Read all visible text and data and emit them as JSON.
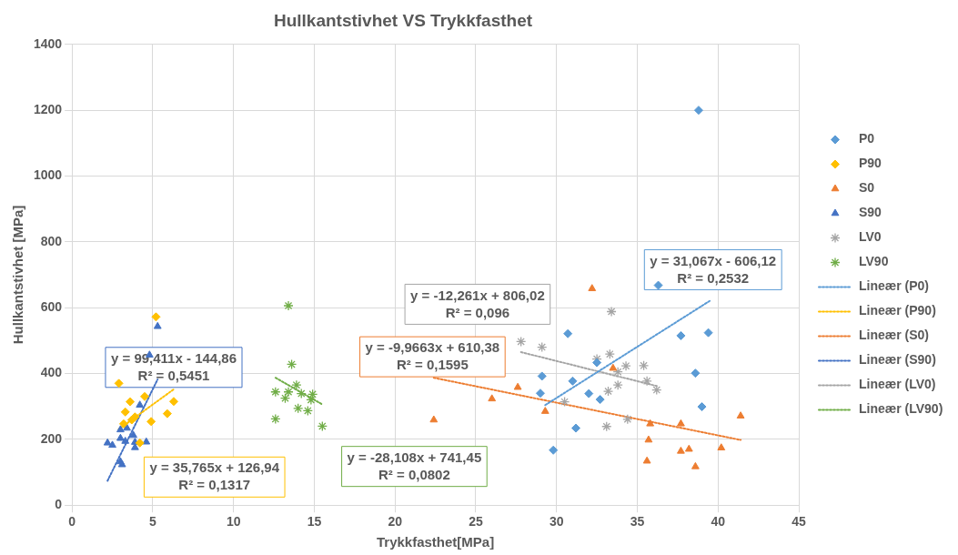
{
  "chart_data": {
    "type": "scatter",
    "title": "Hullkantstivhet VS Trykkfasthet",
    "xlabel": "Trykkfasthet[MPa]",
    "ylabel": "Hullkantstivhet [MPa]",
    "xlim": [
      0,
      45
    ],
    "xticks": [
      0,
      5,
      10,
      15,
      20,
      25,
      30,
      35,
      40,
      45
    ],
    "ylim": [
      0,
      1400
    ],
    "yticks": [
      0,
      200,
      400,
      600,
      800,
      1000,
      1200,
      1400
    ],
    "grid": true,
    "legend": "right",
    "series": [
      {
        "name": "P0",
        "color": "#5b9bd5",
        "marker": "diamond",
        "x": [
          30.7,
          36.3,
          37.7,
          39.4,
          32.5,
          29.1,
          31.0,
          29.0,
          32.0,
          32.7,
          38.6,
          39.0,
          31.2,
          29.8,
          38.8
        ],
        "values": [
          521,
          668,
          515,
          524,
          433,
          392,
          377,
          340,
          339,
          321,
          401,
          299,
          234,
          167,
          1200
        ]
      },
      {
        "name": "P90",
        "color": "#ffc000",
        "marker": "diamond",
        "x": [
          5.2,
          2.9,
          3.6,
          3.3,
          4.5,
          6.3,
          5.9,
          4.9,
          3.7,
          3.2,
          3.9,
          4.2
        ],
        "values": [
          572,
          370,
          314,
          283,
          330,
          315,
          278,
          254,
          259,
          247,
          268,
          189
        ]
      },
      {
        "name": "S0",
        "color": "#ed7d31",
        "marker": "triangle",
        "x": [
          32.2,
          33.5,
          29.3,
          35.8,
          37.7,
          41.4,
          35.7,
          35.6,
          37.7,
          38.2,
          38.6,
          40.2,
          22.4,
          26.0,
          27.6
        ],
        "values": [
          658,
          416,
          285,
          247,
          247,
          271,
          198,
          134,
          164,
          170,
          117,
          174,
          259,
          323,
          358
        ]
      },
      {
        "name": "S90",
        "color": "#4472c4",
        "marker": "triangle",
        "x": [
          5.3,
          4.8,
          4.2,
          3.0,
          3.4,
          3.8,
          3.0,
          3.3,
          2.2,
          2.5,
          3.9,
          4.6,
          3.9,
          3.0,
          3.1
        ],
        "values": [
          543,
          456,
          304,
          229,
          234,
          212,
          203,
          194,
          189,
          182,
          191,
          192,
          175,
          132,
          123
        ]
      },
      {
        "name": "LV0",
        "color": "#a5a5a5",
        "marker": "cross",
        "x": [
          33.4,
          29.1,
          32.5,
          33.3,
          34.3,
          35.4,
          33.8,
          35.6,
          36.2,
          33.8,
          33.2,
          30.5,
          34.4,
          33.1,
          27.8
        ],
        "values": [
          588,
          480,
          444,
          459,
          423,
          424,
          405,
          377,
          350,
          365,
          346,
          314,
          261,
          239,
          497
        ]
      },
      {
        "name": "LV90",
        "color": "#70ad47",
        "marker": "cross",
        "x": [
          13.4,
          13.6,
          13.9,
          12.6,
          13.4,
          14.2,
          14.9,
          13.2,
          14.8,
          14.0,
          14.6,
          12.6,
          15.5
        ],
        "values": [
          606,
          428,
          365,
          344,
          344,
          339,
          337,
          325,
          320,
          294,
          287,
          262,
          240
        ]
      },
      {
        "name": "Lineær (P0)",
        "type": "line",
        "color": "#5b9bd5",
        "marker": "none",
        "line_style": "dotted",
        "x": [
          29.3,
          39.5
        ],
        "values": [
          304,
          621
        ]
      },
      {
        "name": "Lineær (P90)",
        "type": "line",
        "color": "#ffc000",
        "marker": "none",
        "line_style": "dotted",
        "x": [
          2.9,
          6.3
        ],
        "values": [
          231,
          352
        ]
      },
      {
        "name": "Lineær (S0)",
        "type": "line",
        "color": "#ed7d31",
        "marker": "none",
        "line_style": "dotted",
        "x": [
          22.4,
          41.4
        ],
        "values": [
          387,
          198
        ]
      },
      {
        "name": "Lineær (S90)",
        "type": "line",
        "color": "#4472c4",
        "marker": "none",
        "line_style": "dotted",
        "x": [
          2.2,
          5.3
        ],
        "values": [
          74,
          382
        ]
      },
      {
        "name": "Lineær (LV0)",
        "type": "line",
        "color": "#a5a5a5",
        "marker": "none",
        "line_style": "dotted",
        "x": [
          27.8,
          36.2
        ],
        "values": [
          465,
          362
        ]
      },
      {
        "name": "Lineær (LV90)",
        "type": "line",
        "color": "#70ad47",
        "marker": "none",
        "line_style": "dotted",
        "x": [
          12.6,
          15.5
        ],
        "values": [
          387,
          306
        ]
      }
    ],
    "annotations": [
      "y = 31,067x - 606,12\nR² = 0,2532",
      "y = 35,765x + 126,94\nR² = 0,1317",
      "y = -9,9663x + 610,38\nR² = 0,1595",
      "y = 99,411x - 144,86\nR² = 0,5451",
      "y = -12,261x + 806,02\nR² = 0,096",
      "y = -28,108x + 741,45\nR² = 0,0802"
    ]
  }
}
